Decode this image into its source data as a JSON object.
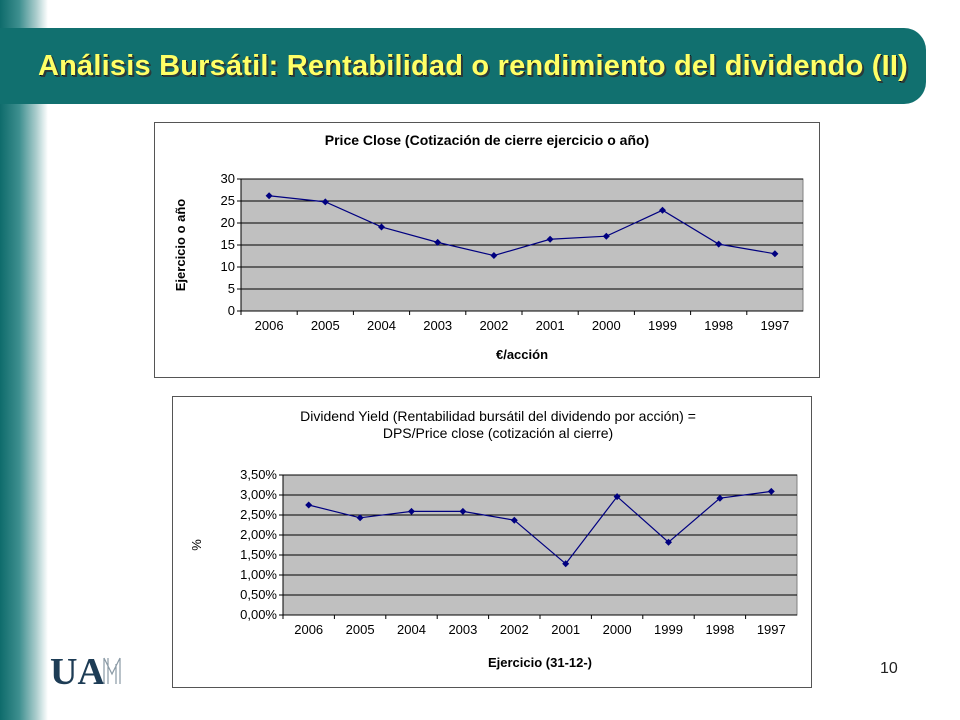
{
  "slide": {
    "title": "Análisis Bursátil: Rentabilidad o rendimiento del dividendo (II)",
    "page_number": "10",
    "logo_text": "UAM",
    "colors": {
      "title_bar": "#11706f",
      "title_text": "#ffff66",
      "plot_bg": "#c0c0c0",
      "series": "#000080"
    }
  },
  "chart_data": [
    {
      "type": "line",
      "title": "Price Close (Cotización de cierre ejercicio o año)",
      "xlabel": "€/acción",
      "ylabel": "Ejercicio o año",
      "categories": [
        "2006",
        "2005",
        "2004",
        "2003",
        "2002",
        "2001",
        "2000",
        "1999",
        "1998",
        "1997"
      ],
      "series": [
        {
          "values": [
            26.2,
            24.8,
            19.1,
            15.6,
            12.6,
            16.3,
            17.0,
            22.9,
            15.2,
            13.0
          ]
        }
      ],
      "ylim": [
        0,
        30
      ],
      "yticks": [
        0,
        5,
        10,
        15,
        20,
        25,
        30
      ],
      "ytick_labels": [
        "0",
        "5",
        "10",
        "15",
        "20",
        "25",
        "30"
      ],
      "grid": true,
      "legend": "none"
    },
    {
      "type": "line",
      "title": "Dividend Yield (Rentabilidad bursátil del dividendo por acción) =",
      "subtitle": "DPS/Price close (cotización al cierre)",
      "xlabel": "Ejercicio (31-12-)",
      "ylabel": "%",
      "categories": [
        "2006",
        "2005",
        "2004",
        "2003",
        "2002",
        "2001",
        "2000",
        "1999",
        "1998",
        "1997"
      ],
      "series": [
        {
          "values": [
            0.0275,
            0.0243,
            0.0259,
            0.0259,
            0.0237,
            0.0128,
            0.0296,
            0.0182,
            0.0292,
            0.0309
          ]
        }
      ],
      "ylim": [
        0,
        0.035
      ],
      "yticks": [
        0,
        0.005,
        0.01,
        0.015,
        0.02,
        0.025,
        0.03,
        0.035
      ],
      "ytick_labels": [
        "0,00%",
        "0,50%",
        "1,00%",
        "1,50%",
        "2,00%",
        "2,50%",
        "3,00%",
        "3,50%"
      ],
      "grid": true,
      "legend": "none"
    }
  ]
}
